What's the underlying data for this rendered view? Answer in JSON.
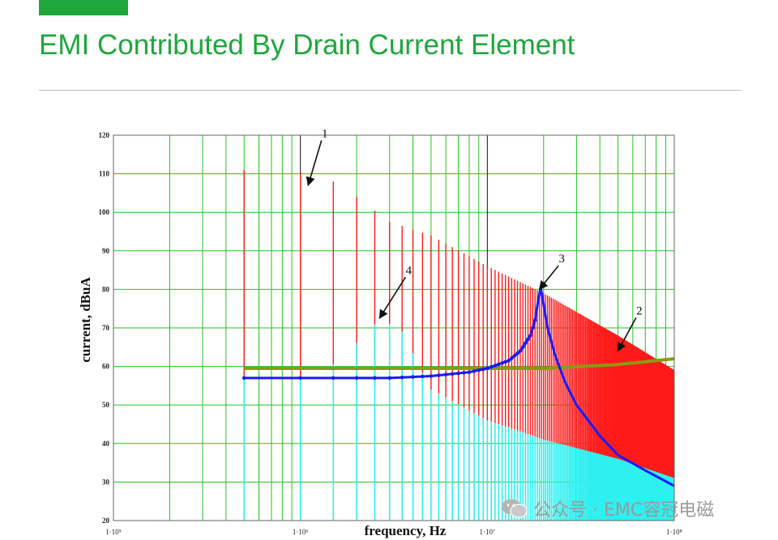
{
  "slide": {
    "title": "EMI Contributed By Drain Current Element",
    "accent_color": "#1ea73c"
  },
  "chart_data": {
    "type": "line",
    "title": "",
    "xlabel": "frequency, Hz",
    "ylabel": "current, dBuA",
    "x_scale": "log",
    "xlim": [
      100000,
      100000000
    ],
    "ylim": [
      20,
      120
    ],
    "yticks": [
      20,
      30,
      40,
      50,
      60,
      70,
      80,
      90,
      100,
      110,
      120
    ],
    "xtick_labels": [
      "1·10⁵",
      "1·10⁶",
      "1·10⁷",
      "1·10⁸"
    ],
    "xtick_values": [
      100000,
      1000000,
      10000000,
      100000000
    ],
    "grid": true,
    "grid_color": "#22c322",
    "fundamental_hz": 500000,
    "annotations": [
      {
        "text": "1",
        "x": 1350000,
        "y": 119.5,
        "arrow_to": [
          1100000,
          107
        ]
      },
      {
        "text": "4",
        "x": 3800000,
        "y": 84,
        "arrow_to": [
          2650000,
          72.5
        ]
      },
      {
        "text": "3",
        "x": 25000000,
        "y": 87,
        "arrow_to": [
          19000000,
          80
        ]
      },
      {
        "text": "2",
        "x": 65000000,
        "y": 73.5,
        "arrow_to": [
          50000000,
          64
        ]
      }
    ],
    "series": [
      {
        "name": "",
        "label": "1",
        "color": "#ff1a1a",
        "style": "harmonic-lines",
        "envelope": {
          "x": [
            500000,
            1000000,
            1500000,
            2000000,
            3000000,
            5000000,
            10000000,
            20000000,
            50000000,
            100000000
          ],
          "y": [
            111,
            110,
            108,
            104,
            97.5,
            94,
            86,
            79,
            68,
            59
          ]
        }
      },
      {
        "name": "",
        "label": "4",
        "color": "#2ef0f0",
        "style": "harmonic-lines",
        "envelope": {
          "x": [
            500000,
            1000000,
            1500000,
            2000000,
            2700000,
            3500000,
            5000000,
            10000000,
            20000000,
            50000000,
            100000000
          ],
          "y": [
            57,
            57,
            60.5,
            66,
            72.5,
            69,
            54,
            46,
            41,
            36,
            31
          ]
        }
      },
      {
        "name": "",
        "label": "2",
        "color": "#8a9a10",
        "style": "line",
        "x": [
          500000,
          1000000,
          2000000,
          5000000,
          10000000,
          20000000,
          50000000,
          100000000
        ],
        "y": [
          59.5,
          59.5,
          59.5,
          59.5,
          59.5,
          59.5,
          60.5,
          62
        ]
      },
      {
        "name": "",
        "label": "3",
        "color": "#1a1aff",
        "style": "dotted-resonance",
        "x": [
          500000,
          1000000,
          2000000,
          3000000,
          5000000,
          8000000,
          10000000,
          13000000,
          15000000,
          17000000,
          18000000,
          18700000,
          19300000,
          20000000,
          21000000,
          23000000,
          26000000,
          30000000,
          40000000,
          50000000,
          70000000,
          100000000
        ],
        "y": [
          57,
          57,
          57,
          57,
          57.5,
          58.5,
          59.5,
          61.5,
          64,
          68,
          72,
          77,
          80.5,
          76,
          70,
          63,
          56,
          50,
          42,
          37,
          33,
          29
        ]
      }
    ]
  },
  "watermark": {
    "text": "公众号 · EMC容冠电磁",
    "icon": "wechat-icon"
  }
}
